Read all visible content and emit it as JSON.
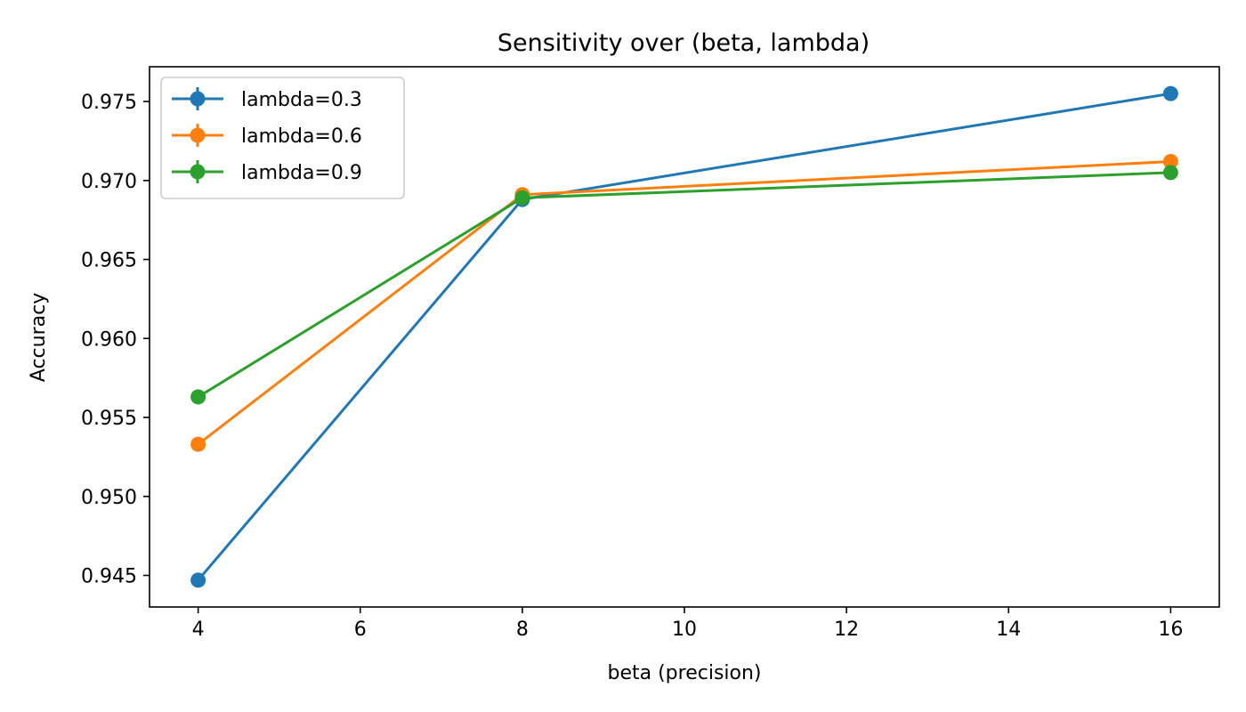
{
  "chart_data": {
    "type": "line",
    "title": "Sensitivity over (beta, lambda)",
    "xlabel": "beta (precision)",
    "ylabel": "Accuracy",
    "x": [
      4,
      8,
      16
    ],
    "xlim": [
      3.4,
      16.6
    ],
    "ylim": [
      0.943,
      0.9772
    ],
    "xticks": [
      4,
      6,
      8,
      10,
      12,
      14,
      16
    ],
    "yticks": [
      0.945,
      0.95,
      0.955,
      0.96,
      0.965,
      0.97,
      0.975
    ],
    "xtick_labels": [
      "4",
      "6",
      "8",
      "10",
      "12",
      "14",
      "16"
    ],
    "ytick_labels": [
      "0.945",
      "0.950",
      "0.955",
      "0.960",
      "0.965",
      "0.970",
      "0.975"
    ],
    "grid": false,
    "legend_position": "top-left",
    "series": [
      {
        "name": "lambda=0.3",
        "color": "#1f77b4",
        "values": [
          0.9447,
          0.9688,
          0.9755
        ]
      },
      {
        "name": "lambda=0.6",
        "color": "#ff7f0e",
        "values": [
          0.9533,
          0.9691,
          0.9712
        ]
      },
      {
        "name": "lambda=0.9",
        "color": "#2ca02c",
        "values": [
          0.9563,
          0.9689,
          0.9705
        ]
      }
    ]
  }
}
